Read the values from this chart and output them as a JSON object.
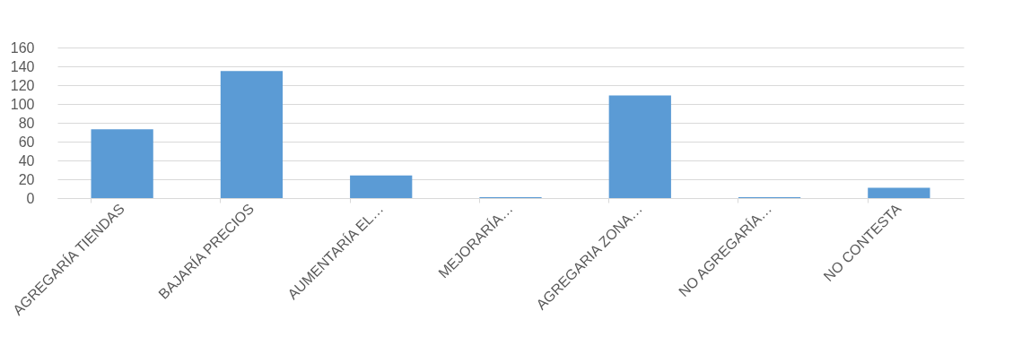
{
  "chart_data": {
    "type": "bar",
    "categories": [
      "AGREGARÍA TIENDAS",
      "BAJARÍA PRECIOS",
      "AUMENTARÍA EL…",
      "MEJORARÍA…",
      "AGREGARIA ZONA…",
      "NO AGREGARÍA…",
      "NO CONTESTA"
    ],
    "values": [
      73,
      135,
      24,
      1,
      109,
      1,
      11
    ],
    "color": "#5b9bd5",
    "ylim": [
      0,
      160
    ],
    "yticks": [
      0,
      20,
      40,
      60,
      80,
      100,
      120,
      140,
      160
    ],
    "grid": "y"
  }
}
